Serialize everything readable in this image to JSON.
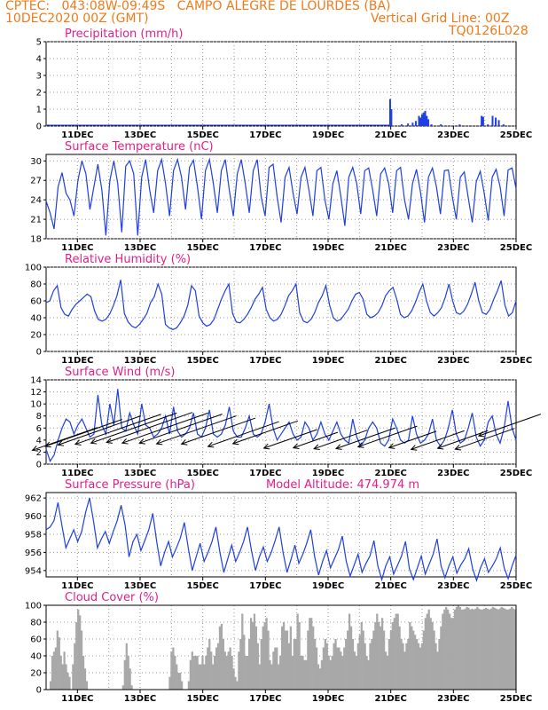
{
  "header": {
    "line1": "CPTEC:   043:08W-09:49S   CAMPO ALEGRE DE LOURDES (BA)",
    "line2_left": "10DEC2020 00Z (GMT)",
    "line2_right": "Vertical Grid Line: 00Z",
    "line3_right": "TQ0126L028"
  },
  "colors": {
    "line": "#1f3fe0",
    "title": "#e0208a",
    "header": "#f07a1a",
    "cloud": "#a8a8a8",
    "arrow": "#000000"
  },
  "chart_data": [
    {
      "type": "bar",
      "title": "Precipitation (mm/h)",
      "ylim": [
        0,
        5
      ],
      "yticks": [
        0,
        1,
        2,
        3,
        4,
        5
      ],
      "xticks": [
        "11DEC",
        "13DEC",
        "15DEC",
        "17DEC",
        "19DEC",
        "21DEC",
        "23DEC",
        "25DEC"
      ],
      "x_day_start": 10,
      "x_day_end": 25,
      "series": [
        {
          "points": [
            [
              20.98,
              1.6
            ],
            [
              21.02,
              1.0
            ],
            [
              21.35,
              0.1
            ],
            [
              21.55,
              0.15
            ],
            [
              21.7,
              0.2
            ],
            [
              21.8,
              0.3
            ],
            [
              21.9,
              0.6
            ],
            [
              21.95,
              0.5
            ],
            [
              22.0,
              0.7
            ],
            [
              22.05,
              0.8
            ],
            [
              22.1,
              0.9
            ],
            [
              22.15,
              0.6
            ],
            [
              22.2,
              0.4
            ],
            [
              22.3,
              0.1
            ],
            [
              22.6,
              0.1
            ],
            [
              23.2,
              0.1
            ],
            [
              23.9,
              0.6
            ],
            [
              23.95,
              0.55
            ],
            [
              24.1,
              0.1
            ],
            [
              24.25,
              0.6
            ],
            [
              24.35,
              0.5
            ],
            [
              24.45,
              0.35
            ],
            [
              24.6,
              0.1
            ]
          ]
        }
      ]
    },
    {
      "type": "line",
      "title": "Surface Temperature (nC)",
      "ylim": [
        18,
        31
      ],
      "yticks": [
        18,
        21,
        24,
        27,
        30
      ],
      "xticks": [
        "11DEC",
        "13DEC",
        "15DEC",
        "17DEC",
        "19DEC",
        "21DEC",
        "23DEC",
        "25DEC"
      ],
      "x_day_start": 10,
      "x_day_end": 25,
      "series": [
        {
          "y": [
            23.8,
            22,
            19.5,
            26,
            28.2,
            25,
            24,
            21.5,
            27,
            30,
            28,
            22.5,
            26,
            29.5,
            25.5,
            18.5,
            27,
            30,
            26.5,
            19,
            29.2,
            30,
            28,
            18.5,
            27.5,
            30.2,
            25.5,
            22,
            28.5,
            30.2,
            26.5,
            21.5,
            28.5,
            30.2,
            27.5,
            22.5,
            29,
            30.1,
            26,
            21,
            28.5,
            30.2,
            26.5,
            22,
            28.5,
            30.2,
            25.5,
            21.5,
            28,
            30.2,
            26.5,
            22,
            28.5,
            30.2,
            24.5,
            21.5,
            29,
            29.5,
            24.5,
            20.5,
            27.5,
            29,
            25,
            21.8,
            27.5,
            29,
            25.5,
            21.5,
            28.5,
            29,
            24,
            21,
            26.5,
            28.5,
            24.5,
            20,
            27.5,
            29,
            26.5,
            21.8,
            28.5,
            28.9,
            25.5,
            21.5,
            28,
            28.9,
            26.5,
            22,
            28.5,
            29,
            24,
            21,
            26.5,
            28.7,
            25.2,
            20.5,
            27.5,
            28.9,
            26,
            21.8,
            28.5,
            28.6,
            24.5,
            21,
            27.5,
            28.3,
            24.3,
            20.5,
            26.8,
            28.4,
            25,
            20.8,
            27.5,
            28.7,
            26,
            21.5,
            28.6,
            28.9,
            25.7
          ]
        }
      ]
    },
    {
      "type": "line",
      "title": "Relative Humidity (%)",
      "ylim": [
        0,
        100
      ],
      "yticks": [
        0,
        20,
        40,
        60,
        80,
        100
      ],
      "xticks": [
        "11DEC",
        "13DEC",
        "15DEC",
        "17DEC",
        "19DEC",
        "21DEC",
        "23DEC",
        "25DEC"
      ],
      "x_day_start": 10,
      "x_day_end": 25,
      "series": [
        {
          "y": [
            58,
            60,
            72,
            78,
            52,
            44,
            42,
            50,
            56,
            60,
            64,
            68,
            65,
            48,
            38,
            36,
            38,
            44,
            54,
            66,
            85,
            45,
            35,
            30,
            28,
            32,
            38,
            45,
            58,
            65,
            80,
            68,
            32,
            28,
            26,
            28,
            34,
            42,
            55,
            78,
            72,
            42,
            34,
            30,
            32,
            38,
            50,
            62,
            72,
            80,
            45,
            35,
            34,
            38,
            44,
            52,
            62,
            68,
            76,
            50,
            40,
            36,
            38,
            44,
            54,
            66,
            72,
            80,
            46,
            36,
            34,
            38,
            46,
            58,
            66,
            78,
            55,
            40,
            36,
            38,
            44,
            50,
            60,
            68,
            70,
            62,
            44,
            40,
            42,
            46,
            54,
            66,
            72,
            76,
            62,
            44,
            40,
            42,
            48,
            58,
            70,
            80,
            60,
            46,
            42,
            46,
            52,
            64,
            80,
            60,
            46,
            44,
            48,
            56,
            68,
            82,
            60,
            46,
            44,
            50,
            62,
            72,
            84,
            55,
            42,
            46,
            60
          ]
        }
      ]
    },
    {
      "type": "line",
      "title": "Surface Wind (m/s)",
      "ylim": [
        0,
        14
      ],
      "yticks": [
        0,
        2,
        4,
        6,
        8,
        10,
        12,
        14
      ],
      "xticks": [
        "11DEC",
        "13DEC",
        "15DEC",
        "17DEC",
        "19DEC",
        "21DEC",
        "23DEC",
        "25DEC"
      ],
      "x_day_start": 10,
      "x_day_end": 25,
      "series": [
        {
          "y": [
            2.5,
            0.5,
            1.5,
            4,
            6,
            7.5,
            7,
            5,
            6.5,
            7.5,
            6,
            4.5,
            5,
            11.5,
            6.5,
            5,
            10,
            6.5,
            12.5,
            6,
            5.5,
            8.5,
            6.5,
            5,
            10,
            6.5,
            6,
            4.5,
            5,
            6,
            8,
            5,
            9.5,
            5.5,
            4.5,
            5,
            6,
            8.5,
            5,
            4.5,
            6,
            9,
            5,
            4.5,
            5,
            6.5,
            9.5,
            5.5,
            4.5,
            4.5,
            6,
            8,
            5,
            4.5,
            5,
            7,
            10,
            6,
            4,
            5,
            6,
            7,
            5,
            4,
            4.5,
            7,
            6,
            4,
            5,
            7,
            5,
            4,
            5.5,
            7,
            5,
            4,
            3.5,
            7.5,
            4.5,
            3,
            4,
            6,
            7,
            6,
            3.5,
            3,
            4,
            7.5,
            6,
            4,
            3.5,
            4,
            8,
            5,
            3.5,
            4,
            5,
            7.5,
            4,
            3,
            4,
            6,
            9,
            5,
            3.5,
            4,
            6,
            8.5,
            4.5,
            3,
            4,
            7,
            8,
            5,
            3.5,
            6,
            10.5,
            6,
            4
          ]
        }
      ],
      "wind_arrows": [
        [
          10.6,
          4.2,
          2.2
        ],
        [
          11.2,
          5.2,
          2.6
        ],
        [
          11.7,
          5.6,
          2.8
        ],
        [
          12.3,
          5.8,
          2.9
        ],
        [
          12.8,
          6.0,
          2.9
        ],
        [
          13.3,
          6.1,
          2.9
        ],
        [
          13.8,
          6.0,
          2.9
        ],
        [
          14.3,
          5.9,
          2.8
        ],
        [
          14.8,
          5.7,
          2.7
        ],
        [
          15.5,
          5.5,
          2.5
        ],
        [
          16.3,
          5.0,
          2.4
        ],
        [
          17.0,
          5.3,
          2.2
        ],
        [
          17.8,
          4.2,
          1.8
        ],
        [
          18.6,
          4.0,
          1.5
        ],
        [
          19.4,
          4.1,
          1.8
        ],
        [
          20.2,
          4.3,
          2.0
        ],
        [
          20.9,
          4.6,
          2.0
        ],
        [
          21.7,
          4.1,
          1.6
        ],
        [
          22.5,
          4.0,
          1.8
        ],
        [
          23.3,
          4.1,
          1.7
        ],
        [
          24.0,
          4.2,
          2.0
        ],
        [
          24.8,
          6.5,
          2.1
        ]
      ]
    },
    {
      "type": "line",
      "title": "Surface Pressure (hPa)",
      "annotation": "Model Altitude: 474.974 m",
      "ylim": [
        953.3,
        962.6
      ],
      "yticks": [
        954,
        956,
        958,
        960,
        962
      ],
      "xticks": [
        "11DEC",
        "13DEC",
        "15DEC",
        "17DEC",
        "19DEC",
        "21DEC",
        "23DEC",
        "25DEC"
      ],
      "x_day_start": 10,
      "x_day_end": 25,
      "series": [
        {
          "y": [
            958.5,
            958.8,
            959.5,
            961.5,
            959,
            956.5,
            957.5,
            958.5,
            957.2,
            958.3,
            960.4,
            962,
            959.5,
            956.5,
            957.5,
            958.3,
            957,
            958.3,
            959.5,
            961.2,
            959,
            955.5,
            957.2,
            958,
            956.2,
            957.3,
            958.5,
            960.3,
            957.2,
            954.5,
            956,
            957.2,
            955.5,
            956.5,
            957.6,
            959.3,
            956.5,
            954,
            955.5,
            957,
            955,
            956,
            957.2,
            958.8,
            956,
            953.8,
            955.3,
            956.8,
            955,
            956,
            957.2,
            958.8,
            956.2,
            954,
            955.5,
            956.6,
            955,
            956,
            957.3,
            958.8,
            956,
            953.8,
            955.2,
            956.8,
            954.8,
            955.8,
            957,
            958.5,
            955.5,
            953.5,
            955,
            956.2,
            954.3,
            955.3,
            956.3,
            957.8,
            955,
            953.4,
            954.6,
            955.8,
            953.8,
            954.8,
            955.6,
            957.3,
            954.5,
            953,
            954.5,
            955.5,
            953.6,
            954.6,
            955.6,
            957.2,
            954.2,
            953,
            954.3,
            955.6,
            953.6,
            954.7,
            955.8,
            957.5,
            954.5,
            953.2,
            954.5,
            955.5,
            953.7,
            954.6,
            955.3,
            956.4,
            954.2,
            952.9,
            954.3,
            955.3,
            953.8,
            954.5,
            955.3,
            956.5,
            954.3,
            953.1,
            954.5,
            955.7
          ]
        }
      ]
    },
    {
      "type": "bar",
      "title": "Cloud Cover (%)",
      "ylim": [
        0,
        100
      ],
      "yticks": [
        0,
        20,
        40,
        60,
        80,
        100
      ],
      "xticks": [
        "11DEC",
        "13DEC",
        "15DEC",
        "17DEC",
        "19DEC",
        "21DEC",
        "23DEC",
        "25DEC"
      ],
      "x_day_start": 10,
      "x_day_end": 25,
      "series": [
        {
          "y": [
            0,
            0,
            10,
            40,
            45,
            50,
            70,
            62,
            40,
            30,
            45,
            30,
            20,
            15,
            0,
            30,
            55,
            80,
            95,
            88,
            70,
            40,
            25,
            10,
            0,
            0,
            0,
            0,
            0,
            0,
            0,
            0,
            0,
            0,
            0,
            0,
            0,
            0,
            0,
            0,
            0,
            0,
            0,
            0,
            5,
            35,
            55,
            40,
            25,
            5,
            0,
            0,
            0,
            0,
            0,
            0,
            0,
            0,
            0,
            0,
            0,
            0,
            0,
            0,
            0,
            0,
            0,
            0,
            0,
            0,
            0,
            15,
            45,
            50,
            40,
            30,
            20,
            20,
            10,
            0,
            0,
            0,
            10,
            35,
            45,
            40,
            40,
            40,
            30,
            30,
            40,
            30,
            40,
            50,
            60,
            45,
            30,
            40,
            50,
            55,
            75,
            78,
            60,
            45,
            40,
            45,
            50,
            40,
            25,
            15,
            10,
            45,
            60,
            90,
            65,
            40,
            40,
            60,
            85,
            80,
            90,
            75,
            55,
            30,
            60,
            75,
            80,
            85,
            70,
            35,
            30,
            45,
            50,
            50,
            30,
            40,
            75,
            80,
            70,
            70,
            55,
            75,
            40,
            60,
            60,
            90,
            80,
            40,
            40,
            35,
            35,
            70,
            85,
            85,
            75,
            60,
            50,
            30,
            25,
            35,
            50,
            60,
            55,
            40,
            35,
            40,
            55,
            60,
            50,
            50,
            45,
            40,
            50,
            60,
            70,
            90,
            75,
            60,
            45,
            40,
            55,
            65,
            80,
            70,
            55,
            40,
            35,
            55,
            60,
            70,
            80,
            90,
            80,
            75,
            85,
            70,
            45,
            40,
            60,
            70,
            80,
            85,
            90,
            90,
            75,
            60,
            55,
            45,
            55,
            60,
            80,
            75,
            70,
            65,
            60,
            55,
            50,
            55,
            70,
            85,
            90,
            95,
            85,
            80,
            70,
            55,
            45,
            60,
            75,
            90,
            95,
            98,
            95,
            90,
            85,
            85,
            95,
            98,
            100,
            98,
            95,
            95,
            96,
            98,
            97,
            95,
            96,
            95,
            96,
            98,
            96,
            95,
            95,
            96,
            97,
            96,
            95,
            96,
            98,
            97,
            96,
            95,
            96,
            98,
            97,
            96,
            95,
            95,
            96,
            98,
            96,
            95
          ]
        }
      ]
    }
  ]
}
